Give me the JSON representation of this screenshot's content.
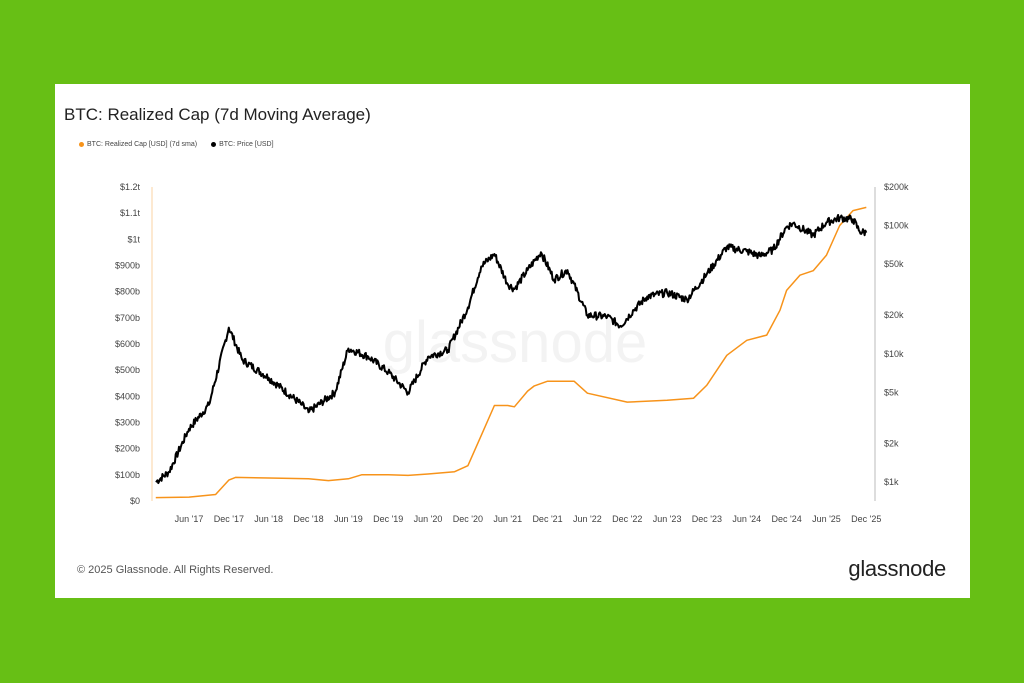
{
  "chart_data": {
    "type": "line",
    "title": "BTC: Realized Cap (7d Moving Average)",
    "legend": [
      "BTC: Realized Cap [USD] (7d sma)",
      "BTC: Price [USD]"
    ],
    "legend_placement": "top-left",
    "grid": false,
    "x_ticks": [
      "Jun '17",
      "Dec '17",
      "Jun '18",
      "Dec '18",
      "Jun '19",
      "Dec '19",
      "Jun '20",
      "Dec '20",
      "Jun '21",
      "Dec '21",
      "Jun '22",
      "Dec '22",
      "Jun '23",
      "Dec '23",
      "Jun '24",
      "Dec '24",
      "Jun '25",
      "Dec '25"
    ],
    "y_left": {
      "ticks": [
        "$0",
        "$100b",
        "$200b",
        "$300b",
        "$400b",
        "$500b",
        "$600b",
        "$700b",
        "$800b",
        "$900b",
        "$1t",
        "$1.1t",
        "$1.2t"
      ],
      "range": [
        0,
        1200
      ],
      "unit": "USD billions"
    },
    "y_right": {
      "ticks": [
        "$1k",
        "$2k",
        "$5k",
        "$10k",
        "$20k",
        "$50k",
        "$100k",
        "$200k"
      ],
      "tick_values": [
        1000,
        2000,
        5000,
        10000,
        20000,
        50000,
        100000,
        200000
      ],
      "scale": "log",
      "range": [
        1000,
        200000
      ]
    },
    "series": [
      {
        "name": "BTC: Realized Cap [USD] (7d sma)",
        "color": "#f7931a",
        "axis": "left",
        "x": [
          "2017-01",
          "2017-06",
          "2017-10",
          "2017-12",
          "2018-01",
          "2018-06",
          "2018-12",
          "2019-03",
          "2019-06",
          "2019-08",
          "2019-12",
          "2020-03",
          "2020-06",
          "2020-10",
          "2020-12",
          "2021-02",
          "2021-04",
          "2021-06",
          "2021-07",
          "2021-09",
          "2021-10",
          "2021-12",
          "2022-04",
          "2022-06",
          "2022-12",
          "2023-06",
          "2023-10",
          "2023-12",
          "2024-03",
          "2024-06",
          "2024-09",
          "2024-11",
          "2024-12",
          "2025-02",
          "2025-04",
          "2025-06",
          "2025-08",
          "2025-10",
          "2025-12"
        ],
        "values": [
          13,
          15,
          25,
          80,
          90,
          88,
          85,
          78,
          85,
          100,
          100,
          98,
          103,
          112,
          135,
          250,
          365,
          365,
          360,
          420,
          440,
          458,
          458,
          412,
          378,
          385,
          393,
          443,
          557,
          614,
          634,
          729,
          805,
          863,
          880,
          939,
          1053,
          1110,
          1122
        ]
      },
      {
        "name": "BTC: Price [USD]",
        "color": "#000000",
        "axis": "right",
        "x": [
          "2017-01",
          "2017-03",
          "2017-06",
          "2017-09",
          "2017-12",
          "2018-02",
          "2018-06",
          "2018-11",
          "2018-12",
          "2019-04",
          "2019-06",
          "2019-09",
          "2019-12",
          "2020-03",
          "2020-06",
          "2020-09",
          "2020-12",
          "2021-02",
          "2021-04",
          "2021-06",
          "2021-07",
          "2021-09",
          "2021-11",
          "2022-01",
          "2022-03",
          "2022-06",
          "2022-09",
          "2022-11",
          "2023-01",
          "2023-03",
          "2023-06",
          "2023-09",
          "2023-12",
          "2024-03",
          "2024-06",
          "2024-08",
          "2024-10",
          "2024-12",
          "2025-01",
          "2025-04",
          "2025-06",
          "2025-08",
          "2025-10",
          "2025-11",
          "2025-12"
        ],
        "values": [
          1000,
          1200,
          2600,
          4000,
          16000,
          9000,
          6500,
          4000,
          3500,
          5000,
          11000,
          9500,
          7200,
          5000,
          9500,
          10700,
          23000,
          48000,
          60000,
          35000,
          32000,
          45000,
          62000,
          38000,
          45000,
          20000,
          19500,
          16500,
          22000,
          28000,
          30000,
          26500,
          42000,
          68000,
          63000,
          58000,
          65000,
          98000,
          104000,
          84000,
          106000,
          115000,
          112000,
          90000,
          88000
        ]
      }
    ],
    "watermark": "glassnode"
  },
  "footer": {
    "copyright": "© 2025 Glassnode. All Rights Reserved.",
    "logo": "glassnode"
  }
}
